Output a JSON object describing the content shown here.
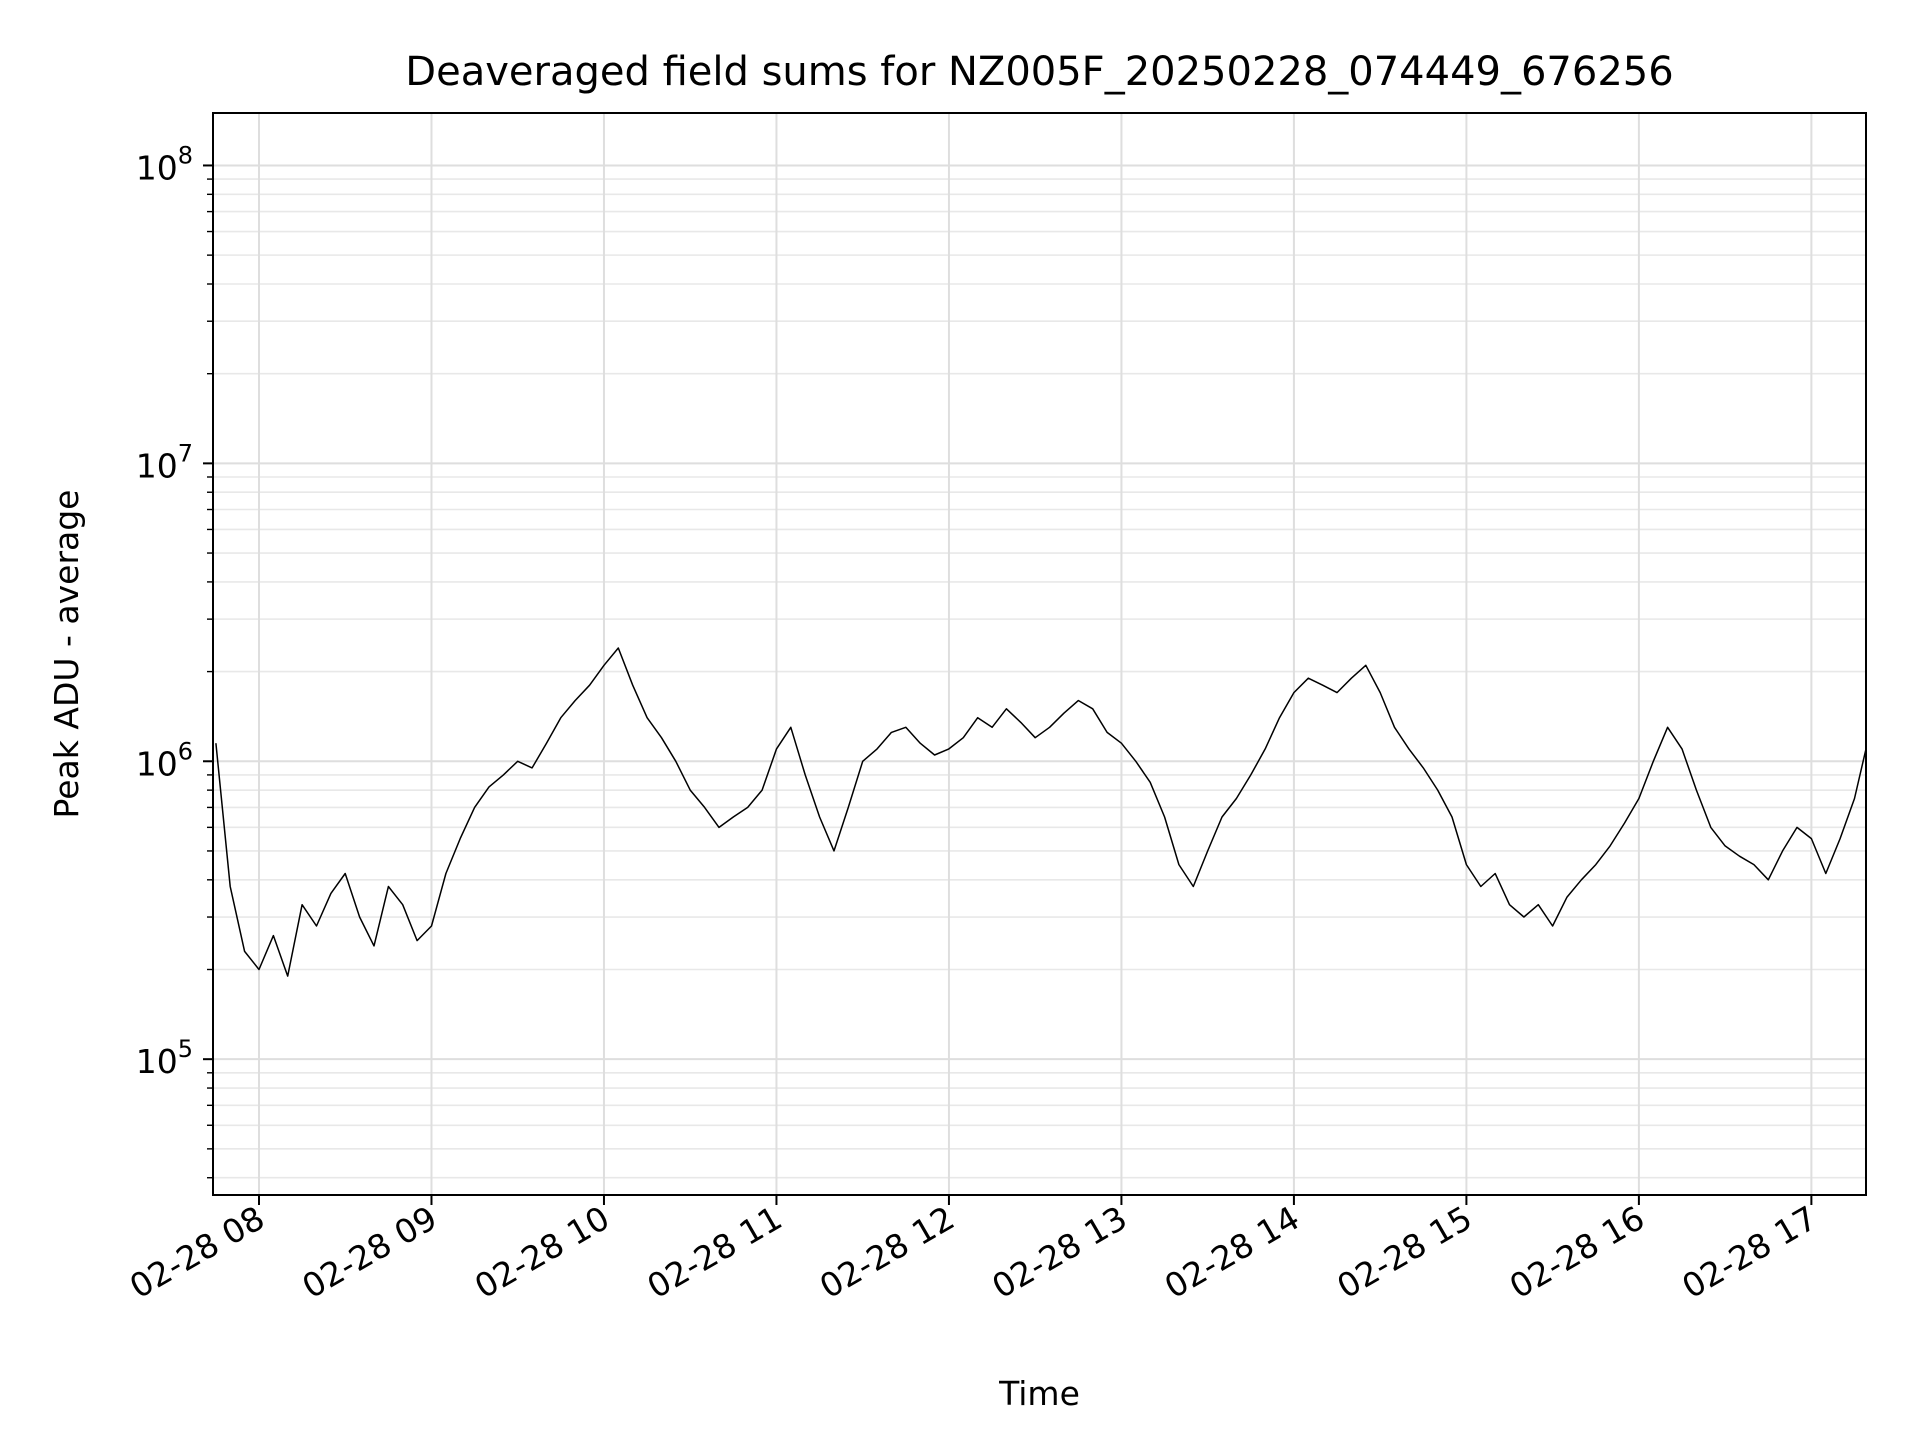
{
  "chart_data": {
    "type": "line",
    "title": "Deaveraged field sums for NZ005F_20250228_074449_676256",
    "xlabel": "Time",
    "ylabel": "Peak ADU - average",
    "yscale": "log",
    "ylim": [
      35000,
      150000000
    ],
    "xlim": [
      "2025-02-28 07:44",
      "2025-02-28 17:19"
    ],
    "grid": true,
    "x_ticks": [
      "02-28 08",
      "02-28 09",
      "02-28 10",
      "02-28 11",
      "02-28 12",
      "02-28 13",
      "02-28 14",
      "02-28 15",
      "02-28 16",
      "02-28 17"
    ],
    "y_ticks": [
      {
        "base": "10",
        "exp": "5",
        "value": 100000
      },
      {
        "base": "10",
        "exp": "6",
        "value": 1000000
      },
      {
        "base": "10",
        "exp": "7",
        "value": 10000000
      },
      {
        "base": "10",
        "exp": "8",
        "value": 100000000
      }
    ],
    "series": [
      {
        "color": "#000000",
        "points": [
          [
            "07:45",
            1150000
          ],
          [
            "07:50",
            380000
          ],
          [
            "07:55",
            230000
          ],
          [
            "08:00",
            200000
          ],
          [
            "08:05",
            260000
          ],
          [
            "08:10",
            190000
          ],
          [
            "08:15",
            330000
          ],
          [
            "08:20",
            280000
          ],
          [
            "08:25",
            360000
          ],
          [
            "08:30",
            420000
          ],
          [
            "08:35",
            300000
          ],
          [
            "08:40",
            240000
          ],
          [
            "08:45",
            380000
          ],
          [
            "08:50",
            330000
          ],
          [
            "08:55",
            250000
          ],
          [
            "09:00",
            280000
          ],
          [
            "09:05",
            420000
          ],
          [
            "09:10",
            550000
          ],
          [
            "09:15",
            700000
          ],
          [
            "09:20",
            820000
          ],
          [
            "09:25",
            900000
          ],
          [
            "09:30",
            1000000
          ],
          [
            "09:35",
            950000
          ],
          [
            "09:40",
            1150000
          ],
          [
            "09:45",
            1400000
          ],
          [
            "09:50",
            1600000
          ],
          [
            "09:55",
            1800000
          ],
          [
            "10:00",
            2100000
          ],
          [
            "10:05",
            2400000
          ],
          [
            "10:10",
            1800000
          ],
          [
            "10:15",
            1400000
          ],
          [
            "10:20",
            1200000
          ],
          [
            "10:25",
            1000000
          ],
          [
            "10:30",
            800000
          ],
          [
            "10:35",
            700000
          ],
          [
            "10:40",
            600000
          ],
          [
            "10:45",
            650000
          ],
          [
            "10:50",
            700000
          ],
          [
            "10:55",
            800000
          ],
          [
            "11:00",
            1100000
          ],
          [
            "11:05",
            1300000
          ],
          [
            "11:10",
            900000
          ],
          [
            "11:15",
            650000
          ],
          [
            "11:20",
            500000
          ],
          [
            "11:25",
            700000
          ],
          [
            "11:30",
            1000000
          ],
          [
            "11:35",
            1100000
          ],
          [
            "11:40",
            1250000
          ],
          [
            "11:45",
            1300000
          ],
          [
            "11:50",
            1150000
          ],
          [
            "11:55",
            1050000
          ],
          [
            "12:00",
            1100000
          ],
          [
            "12:05",
            1200000
          ],
          [
            "12:10",
            1400000
          ],
          [
            "12:15",
            1300000
          ],
          [
            "12:20",
            1500000
          ],
          [
            "12:25",
            1350000
          ],
          [
            "12:30",
            1200000
          ],
          [
            "12:35",
            1300000
          ],
          [
            "12:40",
            1450000
          ],
          [
            "12:45",
            1600000
          ],
          [
            "12:50",
            1500000
          ],
          [
            "12:55",
            1250000
          ],
          [
            "13:00",
            1150000
          ],
          [
            "13:05",
            1000000
          ],
          [
            "13:10",
            850000
          ],
          [
            "13:15",
            650000
          ],
          [
            "13:20",
            450000
          ],
          [
            "13:25",
            380000
          ],
          [
            "13:30",
            500000
          ],
          [
            "13:35",
            650000
          ],
          [
            "13:40",
            750000
          ],
          [
            "13:45",
            900000
          ],
          [
            "13:50",
            1100000
          ],
          [
            "13:55",
            1400000
          ],
          [
            "14:00",
            1700000
          ],
          [
            "14:05",
            1900000
          ],
          [
            "14:10",
            1800000
          ],
          [
            "14:15",
            1700000
          ],
          [
            "14:20",
            1900000
          ],
          [
            "14:25",
            2100000
          ],
          [
            "14:30",
            1700000
          ],
          [
            "14:35",
            1300000
          ],
          [
            "14:40",
            1100000
          ],
          [
            "14:45",
            950000
          ],
          [
            "14:50",
            800000
          ],
          [
            "14:55",
            650000
          ],
          [
            "15:00",
            450000
          ],
          [
            "15:05",
            380000
          ],
          [
            "15:10",
            420000
          ],
          [
            "15:15",
            330000
          ],
          [
            "15:20",
            300000
          ],
          [
            "15:25",
            330000
          ],
          [
            "15:30",
            280000
          ],
          [
            "15:35",
            350000
          ],
          [
            "15:40",
            400000
          ],
          [
            "15:45",
            450000
          ],
          [
            "15:50",
            520000
          ],
          [
            "15:55",
            620000
          ],
          [
            "16:00",
            750000
          ],
          [
            "16:05",
            1000000
          ],
          [
            "16:10",
            1300000
          ],
          [
            "16:15",
            1100000
          ],
          [
            "16:20",
            800000
          ],
          [
            "16:25",
            600000
          ],
          [
            "16:30",
            520000
          ],
          [
            "16:35",
            480000
          ],
          [
            "16:40",
            450000
          ],
          [
            "16:45",
            400000
          ],
          [
            "16:50",
            500000
          ],
          [
            "16:55",
            600000
          ],
          [
            "17:00",
            550000
          ],
          [
            "17:05",
            420000
          ],
          [
            "17:10",
            550000
          ],
          [
            "17:15",
            750000
          ],
          [
            "17:19",
            1100000
          ]
        ]
      }
    ]
  }
}
